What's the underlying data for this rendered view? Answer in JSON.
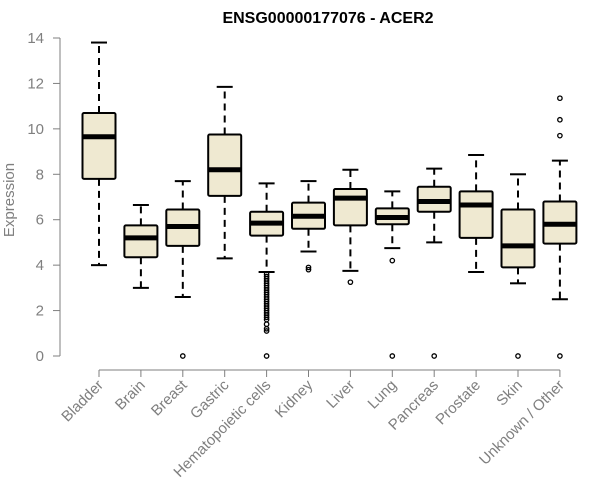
{
  "chart_data": {
    "type": "box",
    "title": "ENSG00000177076 - ACER2",
    "xlabel": "",
    "ylabel": "Expression",
    "ylim": [
      0,
      14
    ],
    "yticks": [
      0,
      2,
      4,
      6,
      8,
      10,
      12,
      14
    ],
    "grid": false,
    "legend": "none",
    "box_fill": "#efe9d1",
    "box_stroke": "#000000",
    "axis_color": "#7f7f7f",
    "categories": [
      "Bladder",
      "Brain",
      "Breast",
      "Gastric",
      "Hematopoietic cells",
      "Kidney",
      "Liver",
      "Lung",
      "Pancreas",
      "Prostate",
      "Skin",
      "Unknown / Other"
    ],
    "boxes": [
      {
        "category": "Bladder",
        "whisker_low": 4.0,
        "q1": 7.8,
        "median": 9.65,
        "q3": 10.7,
        "whisker_high": 13.8,
        "outliers": []
      },
      {
        "category": "Brain",
        "whisker_low": 3.0,
        "q1": 4.35,
        "median": 5.2,
        "q3": 5.75,
        "whisker_high": 6.65,
        "outliers": []
      },
      {
        "category": "Breast",
        "whisker_low": 2.6,
        "q1": 4.85,
        "median": 5.7,
        "q3": 6.45,
        "whisker_high": 7.7,
        "outliers": [
          0.0
        ]
      },
      {
        "category": "Gastric",
        "whisker_low": 4.3,
        "q1": 7.05,
        "median": 8.2,
        "q3": 9.75,
        "whisker_high": 11.85,
        "outliers": []
      },
      {
        "category": "Hematopoietic cells",
        "whisker_low": 3.7,
        "q1": 5.3,
        "median": 5.85,
        "q3": 6.35,
        "whisker_high": 7.6,
        "outliers": [
          3.6,
          3.5,
          3.4,
          3.3,
          3.2,
          3.1,
          3.0,
          2.9,
          2.8,
          2.7,
          2.6,
          2.5,
          2.4,
          2.3,
          2.2,
          2.1,
          2.0,
          1.9,
          1.8,
          1.7,
          1.6,
          1.4,
          1.2,
          1.1,
          0.0
        ]
      },
      {
        "category": "Kidney",
        "whisker_low": 4.6,
        "q1": 5.6,
        "median": 6.15,
        "q3": 6.75,
        "whisker_high": 7.7,
        "outliers": [
          3.9,
          3.8
        ]
      },
      {
        "category": "Liver",
        "whisker_low": 3.75,
        "q1": 5.75,
        "median": 6.95,
        "q3": 7.35,
        "whisker_high": 8.2,
        "outliers": [
          3.25
        ]
      },
      {
        "category": "Lung",
        "whisker_low": 4.75,
        "q1": 5.8,
        "median": 6.1,
        "q3": 6.5,
        "whisker_high": 7.25,
        "outliers": [
          4.2,
          0.0
        ]
      },
      {
        "category": "Pancreas",
        "whisker_low": 5.0,
        "q1": 6.35,
        "median": 6.8,
        "q3": 7.45,
        "whisker_high": 8.25,
        "outliers": [
          0.0
        ]
      },
      {
        "category": "Prostate",
        "whisker_low": 3.7,
        "q1": 5.2,
        "median": 6.65,
        "q3": 7.25,
        "whisker_high": 8.85,
        "outliers": []
      },
      {
        "category": "Skin",
        "whisker_low": 3.2,
        "q1": 3.9,
        "median": 4.85,
        "q3": 6.45,
        "whisker_high": 8.0,
        "outliers": [
          0.0
        ]
      },
      {
        "category": "Unknown / Other",
        "whisker_low": 2.5,
        "q1": 4.95,
        "median": 5.8,
        "q3": 6.8,
        "whisker_high": 8.6,
        "outliers": [
          11.35,
          10.4,
          9.7,
          0.0
        ]
      }
    ]
  }
}
